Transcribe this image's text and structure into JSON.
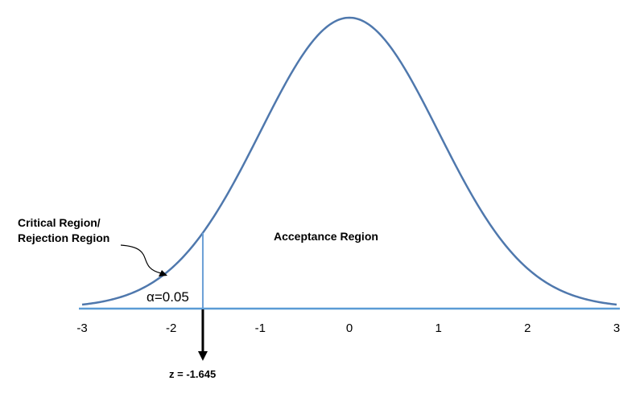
{
  "chart_data": {
    "type": "line",
    "curve": "standard normal density",
    "x_ticks": [
      "-3",
      "-2",
      "-1",
      "0",
      "1",
      "2",
      "3"
    ],
    "xlim": [
      -3,
      3
    ],
    "critical_z": -1.645,
    "labels": {
      "critical_region_line1": "Critical Region/",
      "critical_region_line2": "Rejection Region",
      "acceptance_region": "Acceptance Region",
      "alpha": "α=0.05",
      "z_label": "z = -1.645"
    },
    "colors": {
      "curve": "#4f78ad",
      "axis": "#5b9bd5",
      "cutoff": "#6a9fd6",
      "arrow": "#000000"
    }
  }
}
